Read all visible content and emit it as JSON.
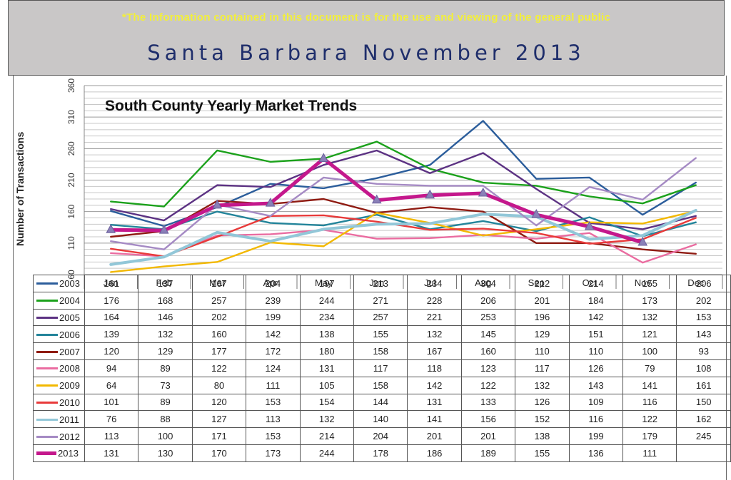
{
  "header": {
    "disclaimer": "*The Information contained in this document is for the use and viewing of the general public",
    "title": "Santa Barbara November 2013"
  },
  "chart_data": {
    "type": "line",
    "title": "South County Yearly Market Trends",
    "ylabel": "Number of Transactions",
    "xlabel": "",
    "ylim": [
      60,
      360
    ],
    "yticks": [
      60,
      110,
      160,
      210,
      260,
      310,
      360
    ],
    "grid": true,
    "legend": "table-below",
    "categories": [
      "Jan",
      "Feb",
      "Mar",
      "Apr",
      "May",
      "Jun",
      "Jul",
      "Aug",
      "Sep",
      "Oct",
      "Nov",
      "Dec"
    ],
    "series": [
      {
        "name": "2003",
        "color": "#2b5d9b",
        "values": [
          161,
          137,
          167,
          204,
          197,
          213,
          234,
          304,
          212,
          214,
          155,
          206
        ]
      },
      {
        "name": "2004",
        "color": "#1ba11b",
        "values": [
          176,
          168,
          257,
          239,
          244,
          271,
          228,
          206,
          201,
          184,
          173,
          202
        ]
      },
      {
        "name": "2005",
        "color": "#5c3283",
        "values": [
          164,
          146,
          202,
          199,
          234,
          257,
          221,
          253,
          196,
          142,
          132,
          153
        ]
      },
      {
        "name": "2006",
        "color": "#23849a",
        "values": [
          139,
          132,
          160,
          142,
          138,
          155,
          132,
          145,
          129,
          151,
          121,
          143
        ]
      },
      {
        "name": "2007",
        "color": "#8f1b12",
        "values": [
          120,
          129,
          177,
          172,
          180,
          158,
          167,
          160,
          110,
          110,
          100,
          93
        ]
      },
      {
        "name": "2008",
        "color": "#ea6ca0",
        "values": [
          94,
          89,
          122,
          124,
          131,
          117,
          118,
          123,
          117,
          126,
          79,
          108
        ]
      },
      {
        "name": "2009",
        "color": "#f2b800",
        "values": [
          64,
          73,
          80,
          111,
          105,
          158,
          142,
          122,
          132,
          143,
          141,
          161
        ]
      },
      {
        "name": "2010",
        "color": "#e83a3a",
        "values": [
          101,
          89,
          120,
          153,
          154,
          144,
          131,
          133,
          126,
          109,
          116,
          150
        ]
      },
      {
        "name": "2011",
        "color": "#92c7d8",
        "values": [
          76,
          88,
          127,
          113,
          132,
          140,
          141,
          156,
          152,
          116,
          122,
          162
        ]
      },
      {
        "name": "2012",
        "color": "#a58ac4",
        "values": [
          113,
          100,
          171,
          153,
          214,
          204,
          201,
          201,
          138,
          199,
          179,
          245
        ]
      },
      {
        "name": "2013",
        "color": "#c4188c",
        "marker": "triangle",
        "values": [
          131,
          130,
          170,
          173,
          244,
          178,
          186,
          189,
          155,
          136,
          111,
          null
        ]
      }
    ]
  }
}
